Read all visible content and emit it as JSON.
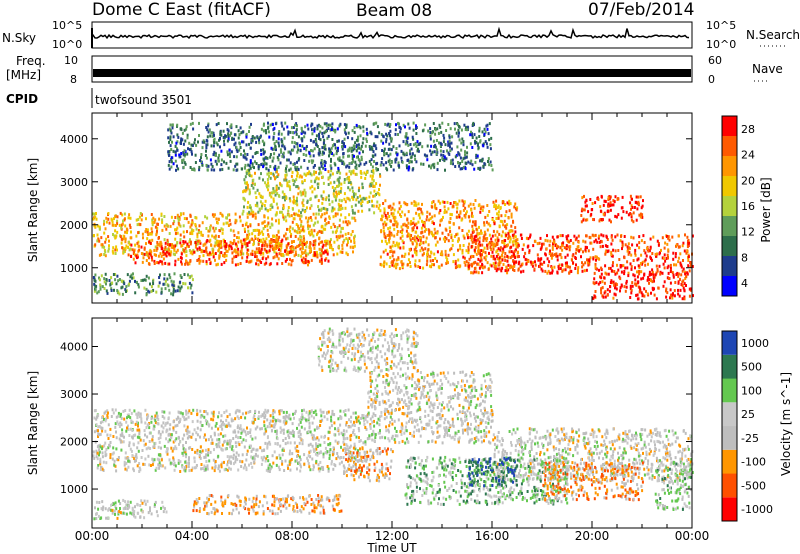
{
  "header": {
    "title": "Dome C East (fitACF)",
    "beam": "Beam 08",
    "date": "07/Feb/2014"
  },
  "panels": {
    "nsky_label": "N.Sky",
    "nsearch_label": "N.Search",
    "freq_label_line1": "Freq.",
    "freq_label_line2": "[MHz]",
    "nave_label": "Nave",
    "cpid_label": "CPID",
    "cpid_value": "twofsound 3501",
    "noise_ticks_left": [
      "10^5",
      "10^0"
    ],
    "noise_ticks_right": [
      "10^5",
      "10^0"
    ],
    "freq_ticks_left": [
      "10",
      "8"
    ],
    "nave_ticks_right": [
      "60",
      "0"
    ]
  },
  "chart_data": [
    {
      "type": "heatmap",
      "panel": "power",
      "ylabel": "Slant Range [km]",
      "xlabel": "Time UT",
      "ylim": [
        180,
        4600
      ],
      "xlim": [
        0,
        24
      ],
      "x_ticks": [
        "00:00",
        "04:00",
        "08:00",
        "12:00",
        "16:00",
        "20:00",
        "00:00"
      ],
      "y_ticks": [
        1000,
        2000,
        3000,
        4000
      ],
      "colorbar": {
        "label": "Power [dB]",
        "ticks": [
          "28",
          "24",
          "20",
          "16",
          "12",
          "8",
          "4"
        ],
        "range": [
          0,
          30
        ],
        "colors": [
          "#0000ff",
          "#1e3c8c",
          "#2d6e4b",
          "#5f9d5a",
          "#b4d23c",
          "#f0c800",
          "#ff9600",
          "#ff5a00",
          "#ff0000"
        ]
      },
      "bands": [
        {
          "t0": 0.0,
          "t1": 10.5,
          "r0": 1300,
          "r1": 2300,
          "level": 20
        },
        {
          "t0": 1.5,
          "t1": 9.5,
          "r0": 1100,
          "r1": 1700,
          "level": 25
        },
        {
          "t0": 6.0,
          "t1": 11.5,
          "r0": 2300,
          "r1": 3300,
          "level": 16
        },
        {
          "t0": 11.5,
          "t1": 17.0,
          "r0": 1000,
          "r1": 2600,
          "level": 22
        },
        {
          "t0": 15.0,
          "t1": 24.0,
          "r0": 900,
          "r1": 1800,
          "level": 26
        },
        {
          "t0": 0.0,
          "t1": 4.0,
          "r0": 400,
          "r1": 900,
          "level": 10
        },
        {
          "t0": 20.0,
          "t1": 24.0,
          "r0": 300,
          "r1": 900,
          "level": 28
        },
        {
          "t0": 3.0,
          "t1": 16.0,
          "r0": 3300,
          "r1": 4400,
          "level": 8
        },
        {
          "t0": 19.5,
          "t1": 22.0,
          "r0": 2100,
          "r1": 2700,
          "level": 27
        }
      ]
    },
    {
      "type": "heatmap",
      "panel": "velocity",
      "ylabel": "Slant Range [km]",
      "xlabel": "Time UT",
      "ylim": [
        180,
        4600
      ],
      "xlim": [
        0,
        24
      ],
      "x_ticks": [
        "00:00",
        "04:00",
        "08:00",
        "12:00",
        "16:00",
        "20:00",
        "00:00"
      ],
      "y_ticks": [
        1000,
        2000,
        3000,
        4000
      ],
      "colorbar": {
        "label": "Velocity [m s^-1]",
        "ticks": [
          "1000",
          "500",
          "100",
          "25",
          "-25",
          "-100",
          "-500",
          "-1000"
        ],
        "range": [
          -1000,
          1000
        ],
        "colors": [
          "#ff0000",
          "#ff5000",
          "#ff9600",
          "#bebebe",
          "#c8c8c8",
          "#64c850",
          "#2d7850",
          "#1e46b4"
        ]
      },
      "bands": [
        {
          "t0": 0.0,
          "t1": 11.0,
          "r0": 1400,
          "r1": 2700,
          "level": 0
        },
        {
          "t0": 11.0,
          "t1": 16.0,
          "r0": 2000,
          "r1": 3500,
          "level": 0
        },
        {
          "t0": 16.0,
          "t1": 24.0,
          "r0": 1200,
          "r1": 2300,
          "level": 0
        },
        {
          "t0": 4.0,
          "t1": 10.0,
          "r0": 500,
          "r1": 900,
          "level": -300
        },
        {
          "t0": 10.0,
          "t1": 12.0,
          "r0": 1200,
          "r1": 1900,
          "level": -300
        },
        {
          "t0": 12.5,
          "t1": 19.0,
          "r0": 700,
          "r1": 1700,
          "level": 300
        },
        {
          "t0": 18.0,
          "t1": 22.0,
          "r0": 800,
          "r1": 1600,
          "level": -400
        },
        {
          "t0": 15.0,
          "t1": 17.0,
          "r0": 1100,
          "r1": 1700,
          "level": 800
        },
        {
          "t0": 0.0,
          "t1": 3.0,
          "r0": 400,
          "r1": 800,
          "level": 60
        },
        {
          "t0": 22.5,
          "t1": 24.0,
          "r0": 600,
          "r1": 1600,
          "level": 200
        },
        {
          "t0": 9.0,
          "t1": 13.0,
          "r0": 3500,
          "r1": 4400,
          "level": 0
        }
      ]
    }
  ]
}
